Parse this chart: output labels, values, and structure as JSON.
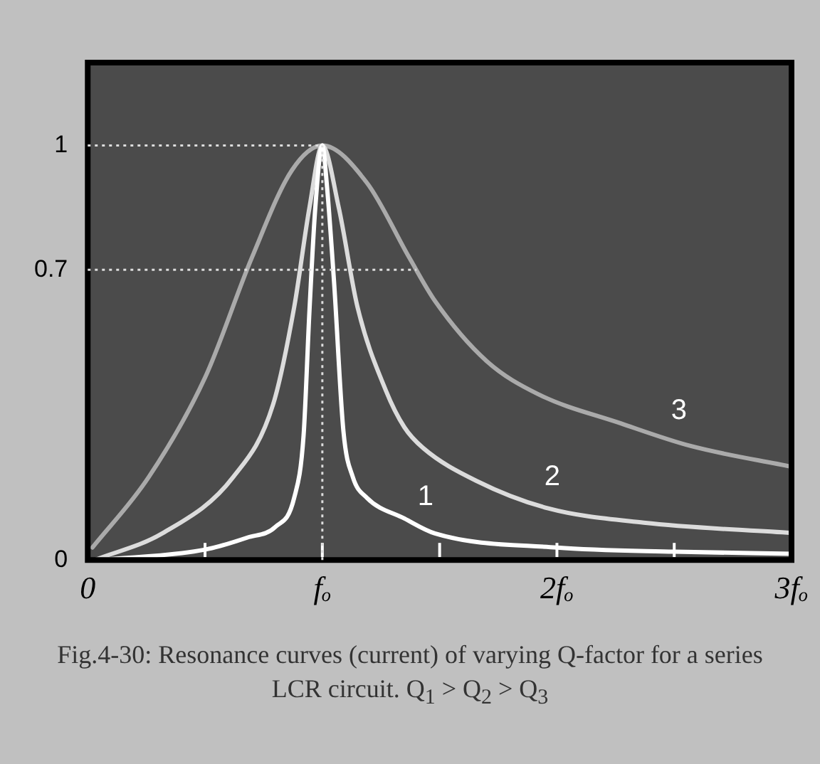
{
  "chart_data": {
    "type": "line",
    "title": "Fig.4-30: Resonance curves (current) of varying Q-factor for a series LCR circuit. Q$_{1}$ > Q$_{2}$ > Q$_{3}$",
    "xlim": [
      0,
      3
    ],
    "xticks": [
      0,
      {
        "value": 0.5,
        "label": null
      },
      {
        "value": 1,
        "label": "fₒ"
      },
      {
        "value": 1.5,
        "label": null
      },
      {
        "value": 2,
        "label": "2fₒ"
      },
      {
        "value": 2.5,
        "label": null
      },
      {
        "value": 3,
        "label": "3fₒ"
      }
    ],
    "ylim": [
      0,
      1.2
    ],
    "yticks": [
      0,
      0.7,
      1
    ],
    "grid": false,
    "legend": false,
    "marker": "none",
    "line_style": "solid",
    "series": [
      {
        "name": "1",
        "color": "#ffffff",
        "x": [
          0.05,
          0.5,
          0.68,
          0.8,
          0.88,
          0.92,
          0.945,
          0.97,
          1,
          1.02,
          1.05,
          1.09,
          1.13,
          1.19,
          1.35,
          1.48,
          2,
          2.5,
          3
        ],
        "values": [
          0,
          0.025,
          0.054,
          0.08,
          0.15,
          0.3,
          0.6,
          0.85,
          1,
          0.9,
          0.67,
          0.31,
          0.2,
          0.15,
          0.1,
          0.064,
          0.03,
          0.02,
          0.015
        ]
      },
      {
        "name": "2",
        "color": "#dcdcdc",
        "x": [
          0.03,
          0.32,
          0.62,
          0.79,
          0.88,
          0.945,
          1,
          1.07,
          1.15,
          1.27,
          1.35,
          1.43,
          1.66,
          1.96,
          2.37,
          3
        ],
        "values": [
          0,
          0.065,
          0.2,
          0.375,
          0.61,
          0.85,
          1,
          0.85,
          0.61,
          0.41,
          0.32,
          0.27,
          0.19,
          0.125,
          0.09,
          0.065
        ]
      },
      {
        "name": "3",
        "color": "#aaaaaa",
        "x": [
          0.02,
          0.26,
          0.5,
          0.7,
          0.87,
          1,
          1.19,
          1.37,
          1.48,
          1.7,
          1.92,
          2.27,
          2.57,
          3
        ],
        "values": [
          0.03,
          0.2,
          0.44,
          0.73,
          0.94,
          1,
          0.91,
          0.73,
          0.625,
          0.48,
          0.4,
          0.33,
          0.275,
          0.225
        ]
      }
    ],
    "ref_lines": [
      {
        "axis": "y",
        "value": 1,
        "color": "#dddddd",
        "line_style": "dotted"
      },
      {
        "axis": "y",
        "value": 0.7,
        "color": "#dddddd",
        "line_style": "dotted"
      },
      {
        "axis": "x",
        "value": 1,
        "color": "#dddddd",
        "line_style": "dotted"
      }
    ]
  }
}
